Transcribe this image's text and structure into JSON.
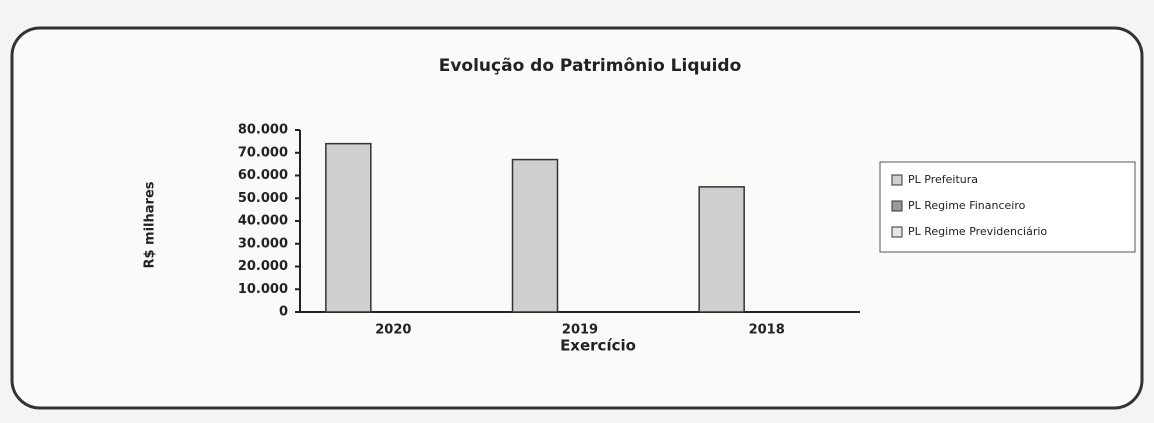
{
  "chart_data": {
    "type": "bar",
    "title": "Evolução do Patrimônio Liquido",
    "y_label": "R$ milhares",
    "x_label": "Exercício",
    "categories": [
      "2020",
      "2019",
      "2018"
    ],
    "series": [
      {
        "name": "PL Prefeitura",
        "color": "#cfcfcf",
        "values": [
          74000,
          67000,
          55000
        ]
      },
      {
        "name": "PL Regime Financeiro",
        "color": "#9a9a9a",
        "values": [
          0,
          0,
          0
        ]
      },
      {
        "name": "PL Regime Previdenciário",
        "color": "#e6e6e6",
        "values": [
          0,
          0,
          0
        ]
      }
    ],
    "ylim": [
      0,
      80000
    ],
    "yticks": [
      0,
      {
        "value": 10000,
        "label": "10.000"
      },
      {
        "value": 20000,
        "label": "20.000"
      },
      {
        "value": 30000,
        "label": "30.000"
      },
      {
        "value": 40000,
        "label": "40.000"
      },
      {
        "value": 50000,
        "label": "50.000"
      },
      {
        "value": 60000,
        "label": "60.000"
      },
      {
        "value": 70000,
        "label": "70.000"
      },
      {
        "value": 80000,
        "label": "80.000"
      }
    ],
    "legend": "right"
  }
}
